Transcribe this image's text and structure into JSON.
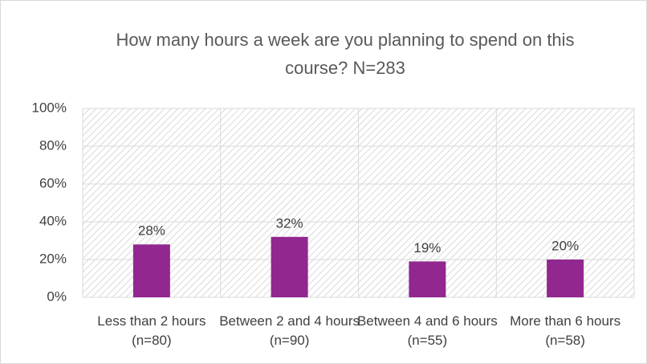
{
  "chart_data": {
    "type": "bar",
    "title": "How many hours a week are you planning to spend on this course? N=283",
    "categories": [
      "Less than 2 hours (n=80)",
      "Between 2 and 4 hours (n=90)",
      "Between 4 and 6 hours (n=55)",
      "More than 6 hours (n=58)"
    ],
    "values": [
      28,
      32,
      19,
      20
    ],
    "value_labels": [
      "28%",
      "32%",
      "19%",
      "20%"
    ],
    "color": "#92278f",
    "ylim": [
      0,
      100
    ],
    "yticks": [
      {
        "value": 0,
        "label": "0%"
      },
      {
        "value": 20,
        "label": "20%"
      },
      {
        "value": 40,
        "label": "40%"
      },
      {
        "value": 60,
        "label": "60%"
      },
      {
        "value": 80,
        "label": "80%"
      },
      {
        "value": 100,
        "label": "100%"
      }
    ],
    "grid": true
  }
}
